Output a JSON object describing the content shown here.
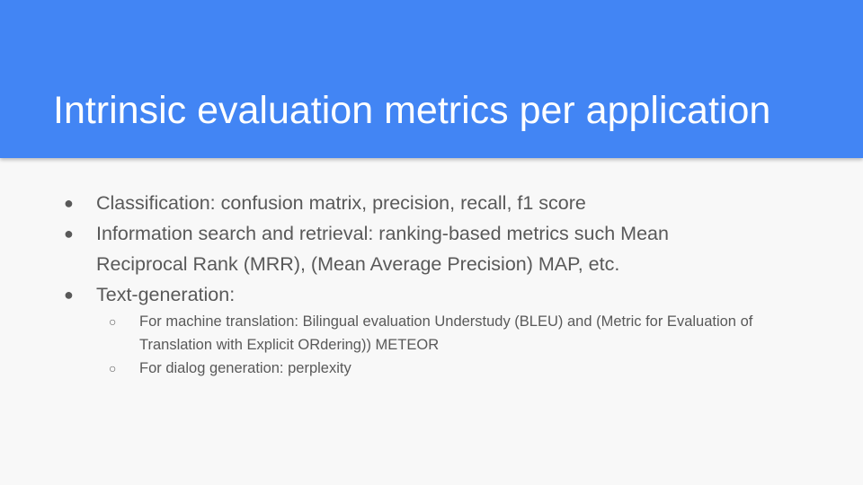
{
  "slide": {
    "title": "Intrinsic evaluation metrics per application",
    "bullets": [
      {
        "marker": "●",
        "text": "Classification: confusion matrix, precision, recall, f1 score"
      },
      {
        "marker": "●",
        "text": "Information search and retrieval: ranking-based metrics such Mean Reciprocal Rank (MRR), (Mean Average Precision) MAP, etc."
      },
      {
        "marker": "●",
        "text": "Text-generation:",
        "sub": [
          {
            "marker": "○",
            "text": "For machine translation: Bilingual evaluation Understudy (BLEU) and (Metric for Evaluation of Translation with Explicit ORdering)) METEOR"
          },
          {
            "marker": "○",
            "text": "For dialog generation: perplexity"
          }
        ]
      }
    ]
  },
  "colors": {
    "title_band": "#4285f4",
    "background": "#f8f8f8",
    "body_text": "#595959"
  }
}
